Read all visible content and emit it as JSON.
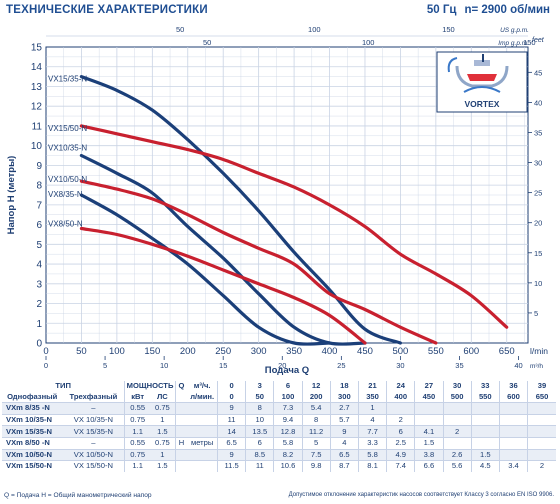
{
  "header": {
    "title": "ТЕХНИЧЕСКИЕ ХАРАКТЕРИСТИКИ",
    "frequency": "50 Гц",
    "speed": "n= 2900 об/мин"
  },
  "colors": {
    "navy": "#1b3f79",
    "red": "#c8202f",
    "grid": "#c9d3e4",
    "text": "#1f3f73"
  },
  "chart_data": {
    "type": "line",
    "title": "",
    "xlabel": "Подача Q",
    "ylabel": "Напор H (метры)",
    "x_unit_lmin": "l/min",
    "x_unit_m3h": "m³/h",
    "y_unit_right": "feet",
    "top_unit_us": "US g.p.m.",
    "top_unit_imp": "Imp g.p.m.",
    "xlim": [
      0,
      680
    ],
    "ylim": [
      0,
      15
    ],
    "x_ticks_lmin": [
      0,
      50,
      100,
      150,
      200,
      250,
      300,
      350,
      400,
      450,
      500,
      550,
      600,
      650
    ],
    "x_ticks_m3h": [
      0,
      5,
      10,
      15,
      20,
      25,
      30,
      35,
      40
    ],
    "y_ticks_m": [
      0,
      1,
      2,
      3,
      4,
      5,
      6,
      7,
      8,
      9,
      10,
      11,
      12,
      13,
      14,
      15
    ],
    "y_ticks_feet": [
      5,
      10,
      15,
      20,
      25,
      30,
      35,
      40,
      45
    ],
    "top_ticks_us": [
      50,
      100,
      150
    ],
    "top_ticks_imp": [
      50,
      100,
      150
    ],
    "grid": true,
    "series": [
      {
        "name": "VX15/35-N",
        "color": "#1b3f79",
        "x": [
          0,
          50,
          100,
          150,
          200,
          250,
          300,
          350,
          400,
          450,
          500
        ],
        "y": [
          13.7,
          13.5,
          12.8,
          11.8,
          10.3,
          8.6,
          6.7,
          4.6,
          2.7,
          0.7,
          0
        ]
      },
      {
        "name": "VX15/50-N",
        "color": "#c8202f",
        "x": [
          0,
          50,
          100,
          150,
          200,
          250,
          300,
          350,
          400,
          450,
          500,
          550,
          600,
          650
        ],
        "y": [
          11.1,
          11.0,
          10.6,
          10.2,
          9.8,
          9.3,
          8.6,
          7.9,
          7.0,
          5.9,
          4.5,
          3.5,
          2.4,
          0.8
        ]
      },
      {
        "name": "VX10/35-N",
        "color": "#1b3f79",
        "x": [
          0,
          50,
          100,
          150,
          200,
          250,
          300,
          350,
          400,
          450
        ],
        "y": [
          10.0,
          9.5,
          8.6,
          7.6,
          5.9,
          4.3,
          2.5,
          0.8,
          0,
          0
        ]
      },
      {
        "name": "VX10/50-N",
        "color": "#c8202f",
        "x": [
          0,
          50,
          100,
          150,
          200,
          250,
          300,
          350,
          400,
          450,
          500,
          550
        ],
        "y": [
          8.4,
          8.2,
          7.8,
          7.3,
          6.5,
          5.6,
          4.8,
          4.0,
          2.5,
          1.7,
          0.8,
          0
        ]
      },
      {
        "name": "VX8/35-N",
        "color": "#1b3f79",
        "x": [
          0,
          50,
          100,
          150,
          200,
          250,
          300,
          350,
          400
        ],
        "y": [
          8.0,
          7.5,
          6.5,
          5.3,
          4.0,
          2.4,
          0.8,
          0,
          0
        ]
      },
      {
        "name": "VX8/50-N",
        "color": "#c8202f",
        "x": [
          0,
          50,
          100,
          150,
          200,
          250,
          300,
          350,
          400,
          450
        ],
        "y": [
          6.1,
          5.8,
          5.5,
          5.0,
          4.4,
          3.7,
          3.0,
          2.3,
          1.4,
          0
        ]
      }
    ],
    "curves_end_at": [
      500,
      650,
      450,
      550,
      400,
      450
    ],
    "legend_placement": "labels-on-curves-left",
    "inset_label": "VORTEX"
  },
  "table": {
    "head1": {
      "type": "ТИП",
      "power": "МОЩНОСТЬ",
      "q": "Q",
      "unit_m3h": "м³/ч.",
      "q_m3h": [
        0,
        3,
        6,
        12,
        18,
        21,
        24,
        27,
        30,
        33,
        36,
        39
      ]
    },
    "head2": {
      "single": "Однофазный",
      "three": "Трехфазный",
      "kw": "кВт",
      "hp": "ЛС",
      "unit_lmin": "л/мин.",
      "q_lmin": [
        0,
        50,
        100,
        200,
        300,
        350,
        400,
        450,
        500,
        550,
        600,
        650
      ]
    },
    "h_label": "H",
    "h_unit": "метры",
    "rows": [
      {
        "single": "VXm 8/35 -N",
        "three": "–",
        "kw": "0.55",
        "hp": "0.75",
        "h": [
          "9",
          "8",
          "7.3",
          "5.4",
          "2.7",
          "1",
          "",
          "",
          "",
          "",
          "",
          ""
        ]
      },
      {
        "single": "VXm 10/35-N",
        "three": "VX 10/35-N",
        "kw": "0.75",
        "hp": "1",
        "h": [
          "11",
          "10",
          "9.4",
          "8",
          "5.7",
          "4",
          "2",
          "",
          "",
          "",
          "",
          ""
        ]
      },
      {
        "single": "VXm 15/35-N",
        "three": "VX 15/35-N",
        "kw": "1.1",
        "hp": "1.5",
        "h": [
          "14",
          "13.5",
          "12.8",
          "11.2",
          "9",
          "7.7",
          "6",
          "4.1",
          "2",
          "",
          "",
          ""
        ]
      },
      {
        "single": "VXm 8/50 -N",
        "three": "–",
        "kw": "0.55",
        "hp": "0.75",
        "h": [
          "6.5",
          "6",
          "5.8",
          "5",
          "4",
          "3.3",
          "2.5",
          "1.5",
          "",
          "",
          "",
          ""
        ]
      },
      {
        "single": "VXm 10/50-N",
        "three": "VX 10/50-N",
        "kw": "0.75",
        "hp": "1",
        "h": [
          "9",
          "8.5",
          "8.2",
          "7.5",
          "6.5",
          "5.8",
          "4.9",
          "3.8",
          "2.6",
          "1.5",
          "",
          ""
        ]
      },
      {
        "single": "VXm 15/50-N",
        "three": "VX 15/50-N",
        "kw": "1.1",
        "hp": "1.5",
        "h": [
          "11.5",
          "11",
          "10.6",
          "9.8",
          "8.7",
          "8.1",
          "7.4",
          "6.6",
          "5.6",
          "4.5",
          "3.4",
          "2"
        ]
      }
    ]
  },
  "footer": {
    "left": "Q = Подача  H = Общий манометрический напор",
    "right": "Допустимое отклонение характеристик насосов соответствует Классу 3 согласно EN ISO 9906."
  }
}
